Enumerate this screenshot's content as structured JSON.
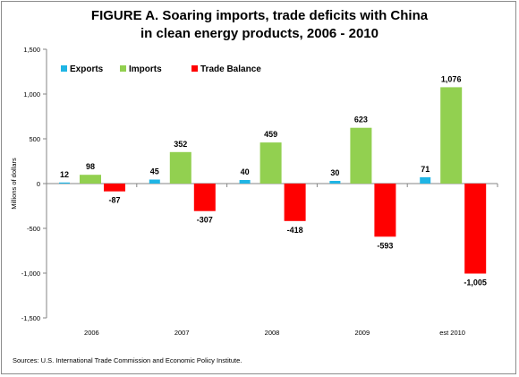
{
  "title_line1": "FIGURE A. Soaring imports, trade deficits with China",
  "title_line2": "in clean energy products, 2006 - 2010",
  "source": "Sources:  U.S. International Trade Commission and Economic Policy Institute.",
  "chart_data": {
    "type": "bar",
    "categories": [
      "2006",
      "2007",
      "2008",
      "2009",
      "est 2010"
    ],
    "ylabel": "Millions of dollars",
    "ylim": [
      -1500,
      1500
    ],
    "yticks": [
      -1500,
      -1000,
      -500,
      0,
      500,
      1000,
      1500
    ],
    "ytick_labels": [
      "-1,500",
      "-1,000",
      "-500",
      "0",
      "500",
      "1,000",
      "1,500"
    ],
    "legend_position": "top-left",
    "grid": false,
    "series": [
      {
        "name": "Exports",
        "color": "#1fb5e5",
        "values": [
          12,
          45,
          40,
          30,
          71
        ],
        "labels": [
          "12",
          "45",
          "40",
          "30",
          "71"
        ]
      },
      {
        "name": "Imports",
        "color": "#92d050",
        "values": [
          98,
          352,
          459,
          623,
          1076
        ],
        "labels": [
          "98",
          "352",
          "459",
          "623",
          "1,076"
        ]
      },
      {
        "name": "Trade Balance",
        "color": "#ff0000",
        "values": [
          -87,
          -307,
          -418,
          -593,
          -1005
        ],
        "labels": [
          "-87",
          "-307",
          "-418",
          "-593",
          "-1,005"
        ]
      }
    ]
  }
}
